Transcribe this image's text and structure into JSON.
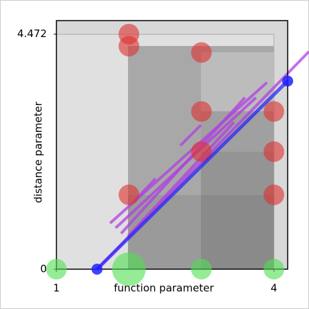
{
  "chart_data": {
    "type": "scatter",
    "xlabel": "function parameter",
    "ylabel": "distance parameter",
    "xlim": [
      1,
      4.19
    ],
    "ylim": [
      0,
      4.73
    ],
    "xticks": [
      1,
      4
    ],
    "yticks": [
      0,
      4.472
    ],
    "series": [
      {
        "name": "red",
        "color": "#e03030",
        "x": [
          2,
          2,
          3,
          3,
          3,
          4,
          4,
          4,
          2
        ],
        "values": [
          4.472,
          4.243,
          4.123,
          3,
          2.236,
          3,
          2.236,
          1.414,
          1.414
        ]
      },
      {
        "name": "green",
        "color": "#50e050",
        "x": [
          1,
          2,
          3,
          4
        ],
        "values": [
          0,
          0,
          0,
          0
        ],
        "sizes": [
          1,
          2,
          1,
          1
        ]
      },
      {
        "name": "blue",
        "color": "#2020ff",
        "x": [
          1.56,
          4.19
        ],
        "values": [
          0,
          3.58
        ]
      }
    ]
  }
}
